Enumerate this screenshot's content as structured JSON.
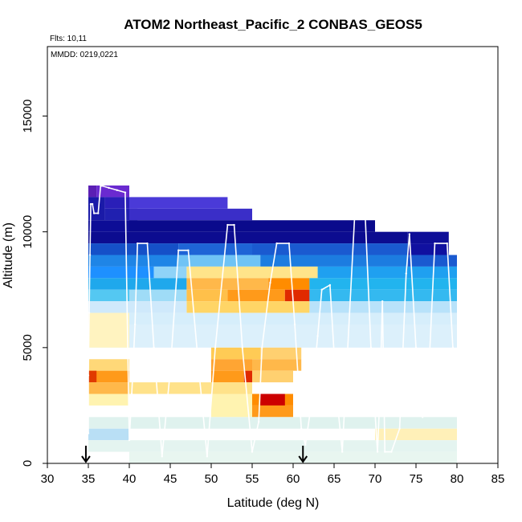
{
  "chart_data": {
    "type": "heatmap",
    "title": "ATOM2 Northeast_Pacific_2 CONBAS_GEOS5",
    "flights_note": "Flts: 10,11",
    "dates_note": "MMDD: 0219,0221",
    "xlabel": "Latitude (deg N)",
    "ylabel": "Altitude (m)",
    "xlim": [
      30,
      85
    ],
    "ylim": [
      0,
      18000
    ],
    "xticks": [
      30,
      35,
      40,
      45,
      50,
      55,
      60,
      65,
      70,
      75,
      80,
      85
    ],
    "yticks": [
      0,
      5000,
      10000,
      15000
    ],
    "xtick_labels": [
      "30",
      "35",
      "40",
      "45",
      "50",
      "55",
      "60",
      "65",
      "70",
      "75",
      "80",
      "85"
    ],
    "ytick_labels": [
      "0",
      "5000",
      "10000",
      "15000"
    ],
    "grid": false,
    "legend": "none",
    "arrow_latitudes": [
      34.7,
      61.2
    ],
    "colors": {
      "background": "#ffffff",
      "frame": "#000000",
      "flight_track": "#ffffff",
      "scale_low": "#0a0a8c",
      "scale_mid_low": "#1e90ff",
      "scale_mid": "#d6f0ff",
      "scale_mid_high": "#fff3b0",
      "scale_high": "#ff8c00",
      "scale_max": "#cc0000"
    },
    "cells": [
      {
        "x": [
          35,
          36
        ],
        "y": [
          11500,
          12000
        ],
        "c": "#5b1fb4"
      },
      {
        "x": [
          35,
          37
        ],
        "y": [
          10500,
          11500
        ],
        "c": "#1a1aa8"
      },
      {
        "x": [
          36,
          40
        ],
        "y": [
          11500,
          12000
        ],
        "c": "#6a2ad0"
      },
      {
        "x": [
          37,
          40
        ],
        "y": [
          11000,
          11500
        ],
        "c": "#2a1fb8"
      },
      {
        "x": [
          37,
          41
        ],
        "y": [
          10500,
          11000
        ],
        "c": "#2020b0"
      },
      {
        "x": [
          40,
          55
        ],
        "y": [
          10500,
          11000
        ],
        "c": "#3a2ec8"
      },
      {
        "x": [
          40,
          52
        ],
        "y": [
          11000,
          11500
        ],
        "c": "#4a3ad8"
      },
      {
        "x": [
          35,
          40
        ],
        "y": [
          10000,
          10500
        ],
        "c": "#0d0d96"
      },
      {
        "x": [
          40,
          70
        ],
        "y": [
          10000,
          10500
        ],
        "c": "#0a0a8c"
      },
      {
        "x": [
          35,
          74
        ],
        "y": [
          9500,
          10000
        ],
        "c": "#0c0c90"
      },
      {
        "x": [
          74,
          79
        ],
        "y": [
          9500,
          10000
        ],
        "c": "#0e0e98"
      },
      {
        "x": [
          74,
          79
        ],
        "y": [
          9000,
          9500
        ],
        "c": "#1010a0"
      },
      {
        "x": [
          35,
          46
        ],
        "y": [
          9000,
          9500
        ],
        "c": "#1550c8"
      },
      {
        "x": [
          46,
          55
        ],
        "y": [
          9000,
          9500
        ],
        "c": "#1e64d6"
      },
      {
        "x": [
          55,
          74
        ],
        "y": [
          9000,
          9500
        ],
        "c": "#1a5ad0"
      },
      {
        "x": [
          35,
          46
        ],
        "y": [
          8500,
          9000
        ],
        "c": "#1f85e6"
      },
      {
        "x": [
          46,
          56
        ],
        "y": [
          8500,
          9000
        ],
        "c": "#6fc3f5"
      },
      {
        "x": [
          56,
          74
        ],
        "y": [
          8500,
          9000
        ],
        "c": "#1c7ce0"
      },
      {
        "x": [
          74,
          80
        ],
        "y": [
          8500,
          9000
        ],
        "c": "#1a5ad0"
      },
      {
        "x": [
          35,
          43
        ],
        "y": [
          8000,
          8500
        ],
        "c": "#1e90ff"
      },
      {
        "x": [
          43,
          47
        ],
        "y": [
          8000,
          8500
        ],
        "c": "#8fd3f8"
      },
      {
        "x": [
          47,
          63
        ],
        "y": [
          8000,
          8500
        ],
        "c": "#ffe48a"
      },
      {
        "x": [
          63,
          80
        ],
        "y": [
          8000,
          8500
        ],
        "c": "#1fa0f0"
      },
      {
        "x": [
          35,
          47
        ],
        "y": [
          7500,
          8000
        ],
        "c": "#1fa8ec"
      },
      {
        "x": [
          47,
          57
        ],
        "y": [
          7500,
          8000
        ],
        "c": "#ffb84a"
      },
      {
        "x": [
          57,
          62
        ],
        "y": [
          7500,
          8000
        ],
        "c": "#ff8c00"
      },
      {
        "x": [
          62,
          80
        ],
        "y": [
          7500,
          8000
        ],
        "c": "#22b4ee"
      },
      {
        "x": [
          35,
          40
        ],
        "y": [
          7000,
          7500
        ],
        "c": "#54c8f2"
      },
      {
        "x": [
          40,
          47
        ],
        "y": [
          7000,
          7500
        ],
        "c": "#9fdcf7"
      },
      {
        "x": [
          47,
          52
        ],
        "y": [
          7000,
          7500
        ],
        "c": "#ffc04a"
      },
      {
        "x": [
          52,
          59
        ],
        "y": [
          7000,
          7500
        ],
        "c": "#ff9a1a"
      },
      {
        "x": [
          59,
          62
        ],
        "y": [
          7000,
          7500
        ],
        "c": "#e02a00"
      },
      {
        "x": [
          62,
          80
        ],
        "y": [
          7000,
          7500
        ],
        "c": "#34b9f0"
      },
      {
        "x": [
          47,
          62
        ],
        "y": [
          6500,
          7000
        ],
        "c": "#ffd566"
      },
      {
        "x": [
          35,
          47
        ],
        "y": [
          6500,
          7000
        ],
        "c": "#cfe9fb"
      },
      {
        "x": [
          62,
          80
        ],
        "y": [
          6500,
          7000
        ],
        "c": "#b8e2fa"
      },
      {
        "x": [
          35,
          80
        ],
        "y": [
          6000,
          6500
        ],
        "c": "#d6eefb"
      },
      {
        "x": [
          35,
          80
        ],
        "y": [
          5000,
          6000
        ],
        "c": "#dcf0fb"
      },
      {
        "x": [
          35,
          40
        ],
        "y": [
          5000,
          6500
        ],
        "c": "#fff3c0"
      },
      {
        "x": [
          50,
          56
        ],
        "y": [
          4500,
          5000
        ],
        "c": "#ffcb55"
      },
      {
        "x": [
          56,
          61
        ],
        "y": [
          4500,
          5000
        ],
        "c": "#ffd070"
      },
      {
        "x": [
          50,
          55
        ],
        "y": [
          4000,
          4500
        ],
        "c": "#ffa533"
      },
      {
        "x": [
          55,
          61
        ],
        "y": [
          4000,
          4500
        ],
        "c": "#ffb84a"
      },
      {
        "x": [
          35,
          40
        ],
        "y": [
          4000,
          4500
        ],
        "c": "#ffd878"
      },
      {
        "x": [
          35,
          40
        ],
        "y": [
          3500,
          4000
        ],
        "c": "#ff9a1a"
      },
      {
        "x": [
          35,
          36
        ],
        "y": [
          3500,
          4000
        ],
        "c": "#e03a00"
      },
      {
        "x": [
          50,
          54
        ],
        "y": [
          3500,
          4000
        ],
        "c": "#ff9a1a"
      },
      {
        "x": [
          54,
          55
        ],
        "y": [
          3500,
          4000
        ],
        "c": "#e02a00"
      },
      {
        "x": [
          55,
          60
        ],
        "y": [
          3500,
          4000
        ],
        "c": "#ffd070"
      },
      {
        "x": [
          35,
          40
        ],
        "y": [
          3000,
          3500
        ],
        "c": "#ffb84a"
      },
      {
        "x": [
          40,
          55
        ],
        "y": [
          3000,
          3500
        ],
        "c": "#ffe28a"
      },
      {
        "x": [
          55,
          60
        ],
        "y": [
          2500,
          3000
        ],
        "c": "#ff8c00"
      },
      {
        "x": [
          56,
          59
        ],
        "y": [
          2500,
          3000
        ],
        "c": "#cc0000"
      },
      {
        "x": [
          55,
          60
        ],
        "y": [
          2000,
          2500
        ],
        "c": "#ff9a1a"
      },
      {
        "x": [
          35,
          40
        ],
        "y": [
          2500,
          3000
        ],
        "c": "#fff3b0"
      },
      {
        "x": [
          50,
          55
        ],
        "y": [
          2000,
          3000
        ],
        "c": "#fff3b0"
      },
      {
        "x": [
          35,
          80
        ],
        "y": [
          1500,
          2000
        ],
        "c": "#dff2ee"
      },
      {
        "x": [
          35,
          40
        ],
        "y": [
          1000,
          1500
        ],
        "c": "#b9dff5"
      },
      {
        "x": [
          70,
          80
        ],
        "y": [
          1000,
          1500
        ],
        "c": "#fff0b8"
      },
      {
        "x": [
          35,
          80
        ],
        "y": [
          500,
          1000
        ],
        "c": "#e4f4f0"
      },
      {
        "x": [
          40,
          80
        ],
        "y": [
          0,
          500
        ],
        "c": "#e8f6f0"
      }
    ],
    "flight_track": [
      [
        35.0,
        1300
      ],
      [
        35.0,
        3800
      ],
      [
        35.1,
        6500
      ],
      [
        35.2,
        9000
      ],
      [
        35.3,
        11200
      ],
      [
        35.5,
        11200
      ],
      [
        35.7,
        10800
      ],
      [
        36.2,
        10800
      ],
      [
        36.5,
        12000
      ],
      [
        37.5,
        11900
      ],
      [
        38.5,
        11800
      ],
      [
        39.5,
        11700
      ],
      [
        40.0,
        1000
      ],
      [
        40.3,
        3000
      ],
      [
        40.7,
        6000
      ],
      [
        41.0,
        9500
      ],
      [
        42.2,
        9500
      ],
      [
        43.0,
        5000
      ],
      [
        44.0,
        300
      ],
      [
        45.0,
        4000
      ],
      [
        46.0,
        9200
      ],
      [
        47.2,
        9200
      ],
      [
        48.5,
        4000
      ],
      [
        49.5,
        300
      ],
      [
        50.5,
        5000
      ],
      [
        52.0,
        10300
      ],
      [
        52.8,
        10300
      ],
      [
        53.8,
        5000
      ],
      [
        55.0,
        500
      ],
      [
        55.8,
        1800
      ],
      [
        56.2,
        5000
      ],
      [
        57.2,
        7800
      ],
      [
        58.0,
        9500
      ],
      [
        59.5,
        9500
      ],
      [
        60.2,
        6000
      ],
      [
        61.0,
        1500
      ],
      [
        61.5,
        800
      ],
      [
        62.2,
        2500
      ],
      [
        63.0,
        5500
      ],
      [
        63.5,
        7500
      ],
      [
        64.5,
        7700
      ],
      [
        65.3,
        3000
      ],
      [
        66.0,
        500
      ],
      [
        67.5,
        10600
      ],
      [
        68.8,
        10700
      ],
      [
        69.5,
        5000
      ],
      [
        70.3,
        500
      ],
      [
        70.6,
        3000
      ],
      [
        70.9,
        7000
      ],
      [
        71.2,
        500
      ],
      [
        72.0,
        500
      ],
      [
        73.0,
        1500
      ],
      [
        73.8,
        8200
      ],
      [
        74.2,
        9900
      ],
      [
        75.0,
        5000
      ],
      [
        75.8,
        2000
      ],
      [
        76.5,
        3500
      ],
      [
        77.3,
        9500
      ],
      [
        78.8,
        9500
      ],
      [
        79.5,
        5000
      ],
      [
        80.2,
        1500
      ]
    ]
  }
}
